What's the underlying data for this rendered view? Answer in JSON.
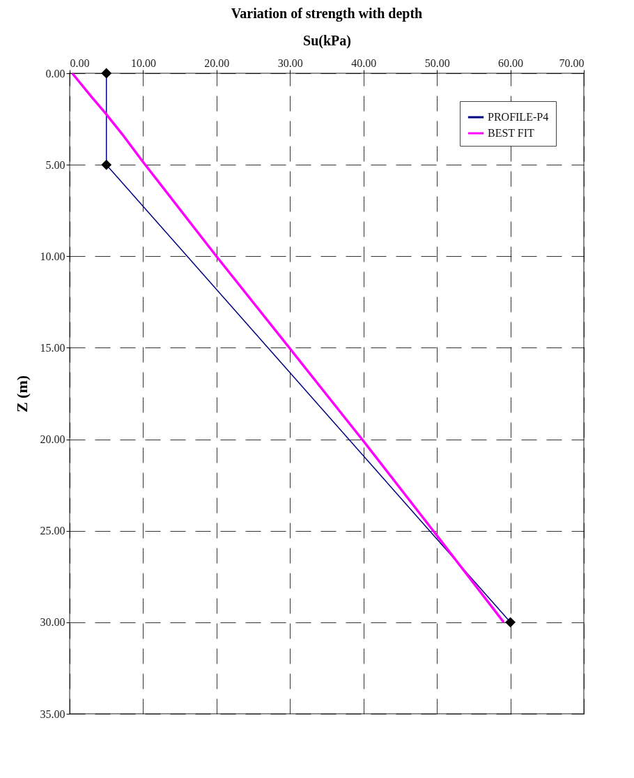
{
  "chart_data": {
    "type": "line",
    "title": "Variation of strength with depth",
    "xlabel": "Su(kPa)",
    "ylabel": "Z (m)",
    "xlim": [
      0,
      70
    ],
    "xticks": [
      {
        "value": 0,
        "label": "0.00"
      },
      {
        "value": 10,
        "label": "10.00"
      },
      {
        "value": 20,
        "label": "20.00"
      },
      {
        "value": 30,
        "label": "30.00"
      },
      {
        "value": 40,
        "label": "40.00"
      },
      {
        "value": 50,
        "label": "50.00"
      },
      {
        "value": 60,
        "label": "60.00"
      },
      {
        "value": 70,
        "label": "70.00"
      }
    ],
    "ylim": [
      35,
      0
    ],
    "yticks": [
      {
        "value": 0,
        "label": "0.00"
      },
      {
        "value": 5,
        "label": "5.00"
      },
      {
        "value": 10,
        "label": "10.00"
      },
      {
        "value": 15,
        "label": "15.00"
      },
      {
        "value": 20,
        "label": "20.00"
      },
      {
        "value": 25,
        "label": "25.00"
      },
      {
        "value": 30,
        "label": "30.00"
      },
      {
        "value": 35,
        "label": "35.00"
      }
    ],
    "grid": true,
    "legend": "top right",
    "line_style": "solid",
    "series": [
      {
        "name": "PROFILE-P4",
        "color": "#000080",
        "marker": "diamond",
        "x": [
          5,
          5,
          60
        ],
        "values": [
          0,
          5,
          30
        ]
      },
      {
        "name": "BEST FIT",
        "color": "#ff00ff",
        "marker": "none",
        "x": [
          0.35,
          3.0,
          4.9,
          7.1,
          10,
          19.9,
          29.9,
          40,
          49.5,
          59.1
        ],
        "values": [
          0,
          1.3,
          2.2,
          3.3,
          4.85,
          9.96,
          15,
          20.1,
          25,
          30
        ]
      }
    ]
  }
}
